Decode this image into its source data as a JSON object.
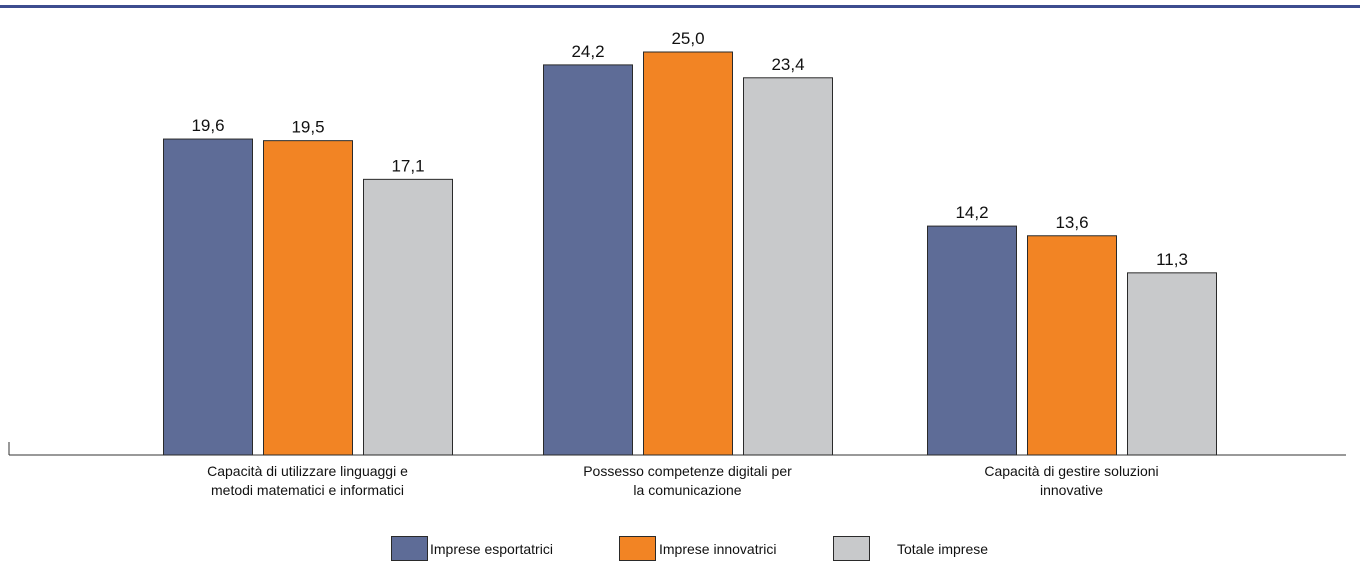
{
  "chart_data": {
    "type": "bar",
    "categories": [
      [
        "Capacità di utilizzare linguaggi e",
        "metodi matematici e informatici"
      ],
      [
        "Possesso competenze digitali per",
        "la comunicazione"
      ],
      [
        "Capacità di gestire soluzioni",
        "innovative"
      ]
    ],
    "series": [
      {
        "name": "Imprese esportatrici",
        "color": "#5e6c97",
        "values": [
          19.6,
          24.2,
          14.2
        ],
        "labels": [
          "19,6",
          "24,2",
          "14,2"
        ]
      },
      {
        "name": "Imprese innovatrici",
        "color": "#f28424",
        "values": [
          19.5,
          25.0,
          13.6
        ],
        "labels": [
          "19,5",
          "25,0",
          "13,6"
        ]
      },
      {
        "name": "Totale imprese",
        "color": "#c8c9cb",
        "values": [
          17.1,
          23.4,
          11.3
        ],
        "labels": [
          "17,1",
          "23,4",
          "11,3"
        ]
      }
    ],
    "ylim": [
      0,
      25.0
    ],
    "grid": false,
    "legend": "bottom"
  }
}
